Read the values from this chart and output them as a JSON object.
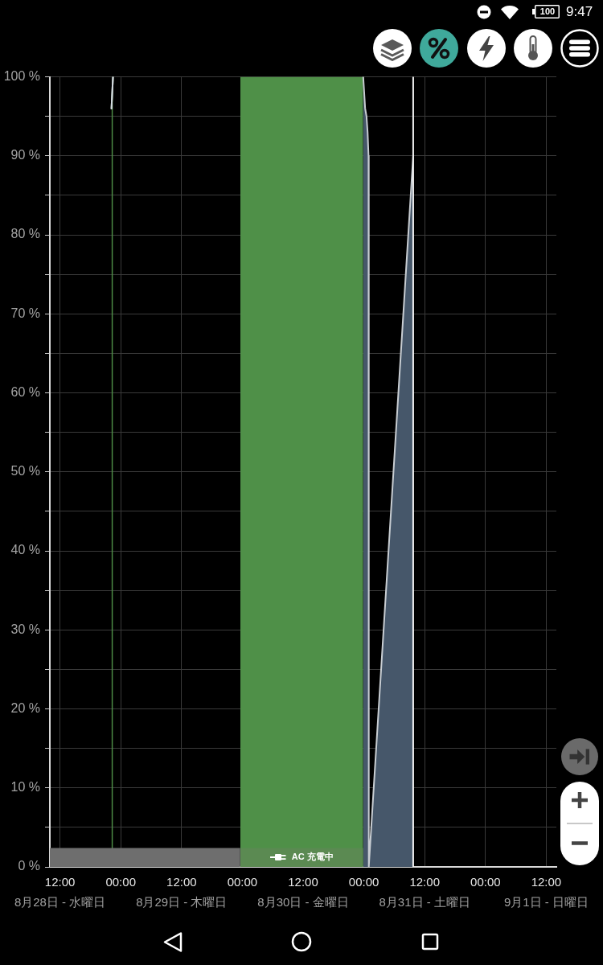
{
  "chart_data": {
    "type": "area",
    "annotations": [
      "9:47",
      "100"
    ],
    "xlim": [
      "--08-28T10:00",
      "--09-01T14:00"
    ],
    "xticks": [
      {
        "value": "--08-28T12:00",
        "label": "12:00\n8月28日 - 水曜日"
      },
      {
        "value": "--08-29T00:00",
        "label": "00:00"
      },
      {
        "value": "--08-29T12:00",
        "label": "12:00\n8月29日 - 木曜日"
      },
      {
        "value": "--08-30T00:00",
        "label": "00:00"
      },
      {
        "value": "--08-30T12:00",
        "label": "12:00\n8月30日 - 金曜日"
      },
      {
        "value": "--08-31T00:00",
        "label": "00:00"
      },
      {
        "value": "--08-31T12:00",
        "label": "12:00\n8月31日 - 土曜日"
      },
      {
        "value": "--09-01T00:00",
        "label": "00:00"
      },
      {
        "value": "--09-01T12:00",
        "label": "12:00\n9月1日 - 日曜日"
      }
    ],
    "ylim": [
      0,
      100
    ],
    "yticks": [
      {
        "value": 0,
        "label": "0 %"
      },
      {
        "value": 5,
        "label": null
      },
      {
        "value": 10,
        "label": "10 %"
      },
      {
        "value": 15,
        "label": null
      },
      {
        "value": 20,
        "label": "20 %"
      },
      {
        "value": 25,
        "label": null
      },
      {
        "value": 30,
        "label": "30 %"
      },
      {
        "value": 35,
        "label": null
      },
      {
        "value": 40,
        "label": "40 %"
      },
      {
        "value": 45,
        "label": null
      },
      {
        "value": 50,
        "label": "50 %"
      },
      {
        "value": 55,
        "label": null
      },
      {
        "value": 60,
        "label": "60 %"
      },
      {
        "value": 65,
        "label": null
      },
      {
        "value": 70,
        "label": "70 %"
      },
      {
        "value": 75,
        "label": null
      },
      {
        "value": 80,
        "label": "80 %"
      },
      {
        "value": 85,
        "label": null
      },
      {
        "value": 90,
        "label": "90 %"
      },
      {
        "value": 95,
        "label": null
      },
      {
        "value": 100,
        "label": "100 %"
      }
    ],
    "grid": true,
    "series": [
      {
        "color": "#4f9048",
        "x": [
          "--08-28T22:10",
          "--08-28T22:28"
        ],
        "values": [
          96,
          100
        ]
      },
      {
        "color": "#4f9048",
        "x": [
          "--08-29T23:36",
          "--08-30T23:52"
        ],
        "values": [
          100,
          100
        ]
      },
      {
        "color": "#46576a",
        "x": [
          "--08-30T23:52",
          "--08-31T00:15",
          "--08-31T00:31",
          "--08-31T00:44",
          "--08-31T00:55",
          "--08-31T00:58",
          "--08-31T09:44"
        ],
        "values": [
          100,
          96,
          95,
          93,
          90,
          0,
          90
        ]
      },
      {
        "color": "#6e6e6e",
        "x": [
          "--08-28T10:00",
          "--08-29T23:36"
        ],
        "values": [
          2.4,
          2.4
        ]
      },
      {
        "name": "AC 充電中",
        "color": "#5b8a52",
        "x": [
          "--08-29T23:36",
          "--08-30T23:52"
        ],
        "values": [
          2.4,
          2.4
        ]
      },
      {
        "type": "line",
        "color": "#d2d9df",
        "x": [
          "--08-28T22:10",
          "--08-28T22:28"
        ],
        "values": [
          96,
          100
        ]
      }
    ],
    "ref_lines": [
      {
        "axis": "x",
        "value": "--08-31T09:44",
        "color": "#f4f4f4"
      }
    ]
  }
}
